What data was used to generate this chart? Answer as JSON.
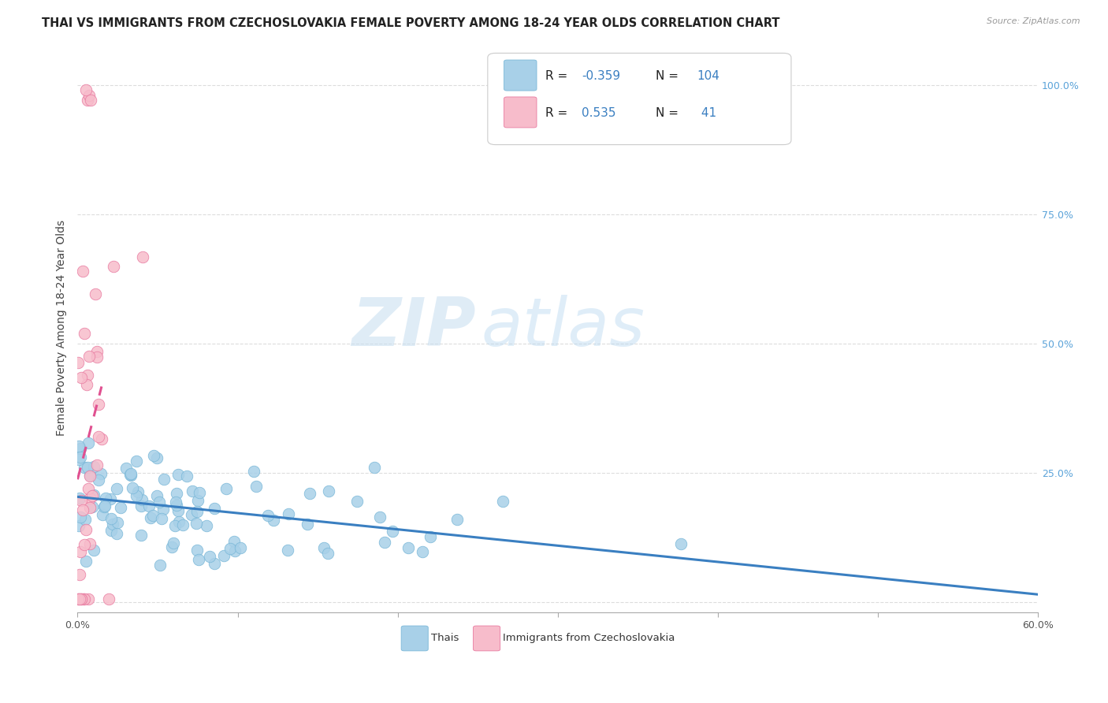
{
  "title": "THAI VS IMMIGRANTS FROM CZECHOSLOVAKIA FEMALE POVERTY AMONG 18-24 YEAR OLDS CORRELATION CHART",
  "source": "Source: ZipAtlas.com",
  "ylabel": "Female Poverty Among 18-24 Year Olds",
  "xlim": [
    0.0,
    0.6
  ],
  "ylim": [
    -0.02,
    1.08
  ],
  "blue_R": -0.359,
  "blue_N": 104,
  "pink_R": 0.535,
  "pink_N": 41,
  "blue_color": "#a8d0e8",
  "blue_edge_color": "#7ab8d8",
  "blue_line_color": "#3a7fc1",
  "pink_color": "#f7bccb",
  "pink_edge_color": "#e87aa0",
  "pink_line_color": "#e05090",
  "watermark_zip": "ZIP",
  "watermark_atlas": "atlas",
  "title_fontsize": 10.5,
  "axis_label_fontsize": 10,
  "tick_fontsize": 9,
  "right_tick_color": "#5ba3d9",
  "seed": 7
}
